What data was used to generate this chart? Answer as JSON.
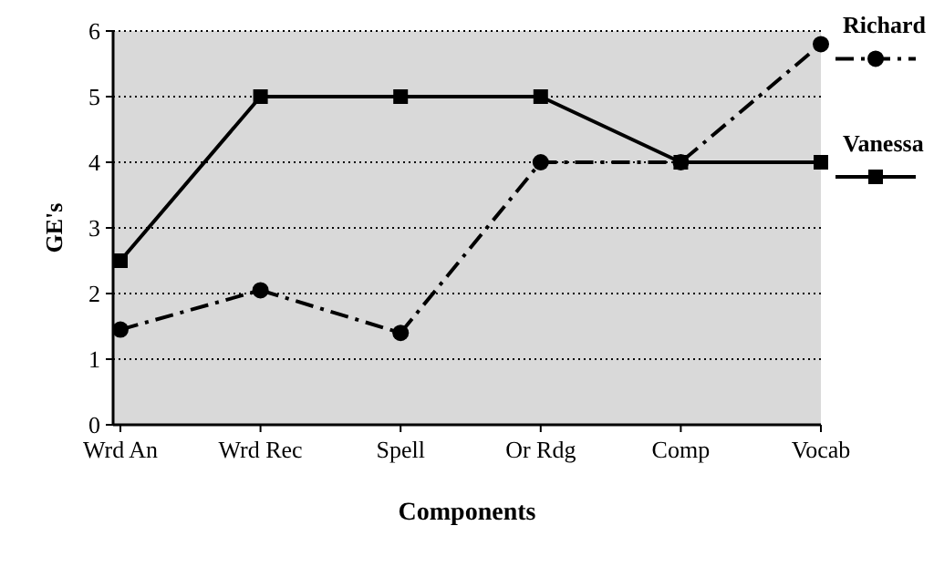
{
  "chart_data": {
    "type": "line",
    "xlabel": "Components",
    "ylabel": "GE's",
    "categories": [
      "Wrd An",
      "Wrd Rec",
      "Spell",
      "Or Rdg",
      "Comp",
      "Vocab"
    ],
    "series": [
      {
        "name": "Richard",
        "color": "#000000",
        "values": [
          1.45,
          2.05,
          1.4,
          4.0,
          4.0,
          5.8
        ],
        "marker": "circle",
        "line_style": "dashed"
      },
      {
        "name": "Vanessa",
        "color": "#000000",
        "values": [
          2.5,
          5.0,
          5.0,
          5.0,
          4.0,
          4.0
        ],
        "marker": "square",
        "line_style": "solid"
      }
    ],
    "ylim": [
      0,
      6
    ],
    "yticks": [
      0,
      1,
      2,
      3,
      4,
      5,
      6
    ],
    "grid": "y",
    "legend": "right"
  }
}
